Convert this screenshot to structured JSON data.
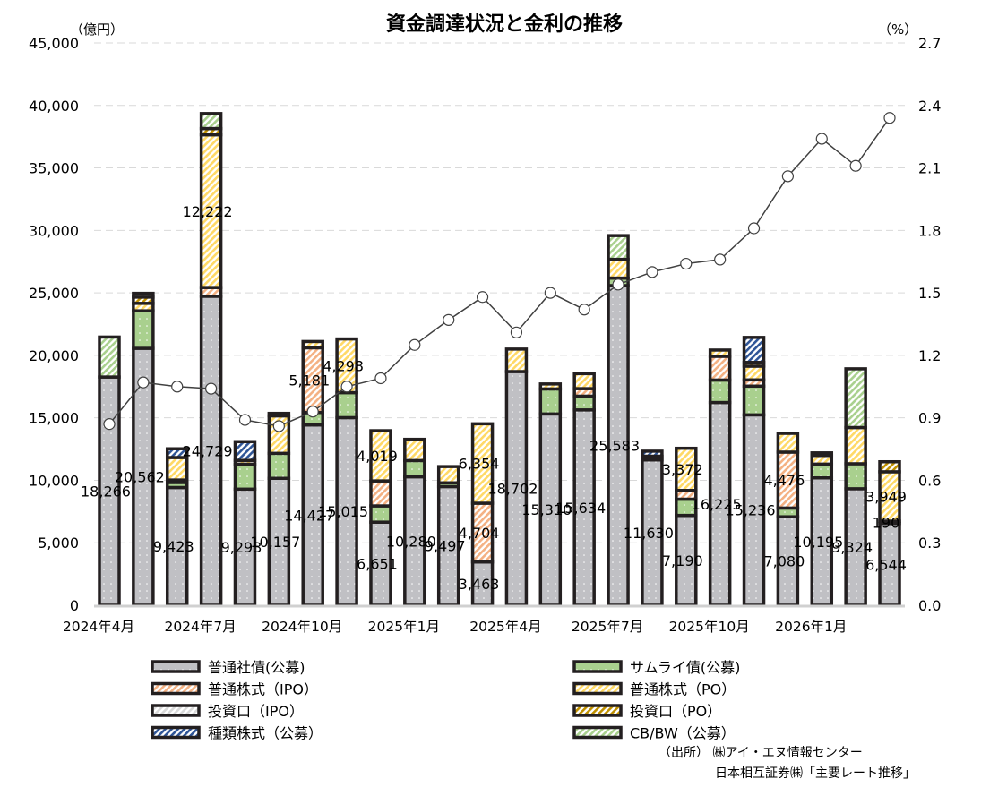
{
  "chart_data": {
    "type": "bar",
    "stacked": true,
    "title": "資金調達状況と金利の推移",
    "ylabel_left": "（億円）",
    "ylabel_right": "（%）",
    "ylim_left": [
      0,
      45000
    ],
    "ylim_right": [
      0,
      2.7
    ],
    "yticks_left": [
      "0",
      "5,000",
      "10,000",
      "15,000",
      "20,000",
      "25,000",
      "30,000",
      "35,000",
      "40,000",
      "45,000"
    ],
    "yticks_right": [
      "0.0",
      "0.3",
      "0.6",
      "0.9",
      "1.2",
      "1.5",
      "1.8",
      "2.1",
      "2.4",
      "2.7"
    ],
    "grid": "horizontal dashed",
    "legend_position": "bottom",
    "categories": [
      "2024年4月",
      "",
      "",
      "2024年7月",
      "",
      "",
      "2024年10月",
      "",
      "",
      "2025年1月",
      "",
      "",
      "2025年4月",
      "",
      "",
      "2025年7月",
      "",
      "",
      "2025年10月",
      "",
      "",
      "2026年1月",
      "",
      ""
    ],
    "series": [
      {
        "name": "普通社債(公募)",
        "color": "#c0c0c4",
        "pattern": "dots",
        "values": [
          18266,
          20562,
          9423,
          24729,
          9293,
          10157,
          14427,
          15015,
          6651,
          10280,
          9497,
          3463,
          18702,
          15310,
          15634,
          25583,
          11630,
          7190,
          16225,
          15236,
          7080,
          10195,
          9324,
          6544
        ]
      },
      {
        "name": "サムライ債(公募)",
        "color": "#a9d08e",
        "pattern": "dots",
        "values": [
          0,
          3000,
          400,
          0,
          2000,
          2000,
          1000,
          2000,
          1300,
          1300,
          300,
          0,
          0,
          2000,
          1100,
          600,
          0,
          1300,
          1800,
          2300,
          700,
          1100,
          2000,
          0
        ]
      },
      {
        "name": "普通株式（IPO）",
        "color": "#f4b183",
        "pattern": "hatch",
        "values": [
          0,
          0,
          200,
          700,
          0,
          0,
          5181,
          0,
          2000,
          0,
          0,
          4704,
          0,
          0,
          600,
          0,
          0,
          700,
          1900,
          500,
          4476,
          0,
          0,
          190
        ]
      },
      {
        "name": "普通株式（PO）",
        "color": "#ffd966",
        "pattern": "hatch",
        "values": [
          0,
          600,
          1800,
          12222,
          300,
          3000,
          500,
          4298,
          4019,
          1700,
          1300,
          6354,
          1800,
          400,
          1200,
          1500,
          0,
          3372,
          500,
          1100,
          1500,
          700,
          2900,
          3949
        ]
      },
      {
        "name": "投資口（IPO）",
        "color": "#d9d9d9",
        "pattern": "hatch",
        "values": [
          0,
          0,
          0,
          0,
          0,
          0,
          0,
          0,
          0,
          0,
          0,
          0,
          0,
          0,
          0,
          0,
          0,
          0,
          0,
          0,
          0,
          0,
          0,
          0
        ]
      },
      {
        "name": "投資口（PO）",
        "color": "#bf9000",
        "pattern": "hatch",
        "values": [
          0,
          500,
          0,
          500,
          0,
          200,
          0,
          0,
          0,
          0,
          0,
          0,
          0,
          0,
          0,
          0,
          300,
          0,
          0,
          300,
          0,
          200,
          0,
          800
        ]
      },
      {
        "name": "種類株式（公募）",
        "color": "#2f5597",
        "pattern": "hatch",
        "values": [
          0,
          0,
          700,
          0,
          1500,
          0,
          0,
          0,
          0,
          0,
          0,
          0,
          0,
          0,
          0,
          0,
          400,
          0,
          0,
          2000,
          0,
          0,
          0,
          0
        ]
      },
      {
        "name": "CB/BW（公募）",
        "color": "#a9d08e",
        "pattern": "hatch",
        "values": [
          3200,
          300,
          0,
          1200,
          0,
          0,
          0,
          0,
          0,
          0,
          0,
          0,
          0,
          0,
          0,
          1900,
          0,
          0,
          0,
          0,
          0,
          0,
          4700,
          0
        ]
      }
    ],
    "line_series": {
      "axis": "right",
      "color": "#404040",
      "values": [
        0.87,
        1.07,
        1.05,
        1.04,
        0.89,
        0.86,
        0.93,
        1.05,
        1.09,
        1.25,
        1.37,
        1.48,
        1.31,
        1.5,
        1.42,
        1.54,
        1.6,
        1.64,
        1.66,
        1.81,
        2.06,
        2.24,
        2.11,
        2.34
      ]
    },
    "data_labels": [
      {
        "i": 0,
        "s": 0,
        "text": "18,266"
      },
      {
        "i": 1,
        "s": 0,
        "text": "20,562"
      },
      {
        "i": 2,
        "s": 0,
        "text": "9,423"
      },
      {
        "i": 3,
        "s": 0,
        "text": "24,729"
      },
      {
        "i": 3,
        "s": 3,
        "text": "12,222"
      },
      {
        "i": 4,
        "s": 0,
        "text": "9,293"
      },
      {
        "i": 5,
        "s": 0,
        "text": "10,157"
      },
      {
        "i": 6,
        "s": 0,
        "text": "14,427"
      },
      {
        "i": 6,
        "s": 2,
        "text": "5,181"
      },
      {
        "i": 7,
        "s": 0,
        "text": "15,015"
      },
      {
        "i": 7,
        "s": 3,
        "text": "4,298"
      },
      {
        "i": 8,
        "s": 0,
        "text": "6,651"
      },
      {
        "i": 8,
        "s": 3,
        "text": "4,019"
      },
      {
        "i": 9,
        "s": 0,
        "text": "10,280"
      },
      {
        "i": 10,
        "s": 0,
        "text": "9,497"
      },
      {
        "i": 11,
        "s": 0,
        "text": "3,463"
      },
      {
        "i": 11,
        "s": 2,
        "text": "4,704"
      },
      {
        "i": 11,
        "s": 3,
        "text": "6,354"
      },
      {
        "i": 12,
        "s": 0,
        "text": "18,702"
      },
      {
        "i": 13,
        "s": 0,
        "text": "15,310"
      },
      {
        "i": 14,
        "s": 0,
        "text": "15,634"
      },
      {
        "i": 15,
        "s": 0,
        "text": "25,583"
      },
      {
        "i": 16,
        "s": 0,
        "text": "11,630"
      },
      {
        "i": 17,
        "s": 0,
        "text": "7,190"
      },
      {
        "i": 17,
        "s": 3,
        "text": "3,372"
      },
      {
        "i": 18,
        "s": 0,
        "text": "16,225"
      },
      {
        "i": 19,
        "s": 0,
        "text": "15,236"
      },
      {
        "i": 20,
        "s": 0,
        "text": "7,080"
      },
      {
        "i": 20,
        "s": 2,
        "text": "4,476"
      },
      {
        "i": 21,
        "s": 0,
        "text": "10,195"
      },
      {
        "i": 22,
        "s": 0,
        "text": "9,324"
      },
      {
        "i": 23,
        "s": 0,
        "text": "6,544"
      },
      {
        "i": 23,
        "s": 2,
        "text": "190"
      },
      {
        "i": 23,
        "s": 3,
        "text": "3,949"
      }
    ]
  },
  "source": {
    "line1": "（出所）  ㈱アイ・エヌ情報センター",
    "line2": "日本相互証券㈱「主要レート推移」"
  }
}
